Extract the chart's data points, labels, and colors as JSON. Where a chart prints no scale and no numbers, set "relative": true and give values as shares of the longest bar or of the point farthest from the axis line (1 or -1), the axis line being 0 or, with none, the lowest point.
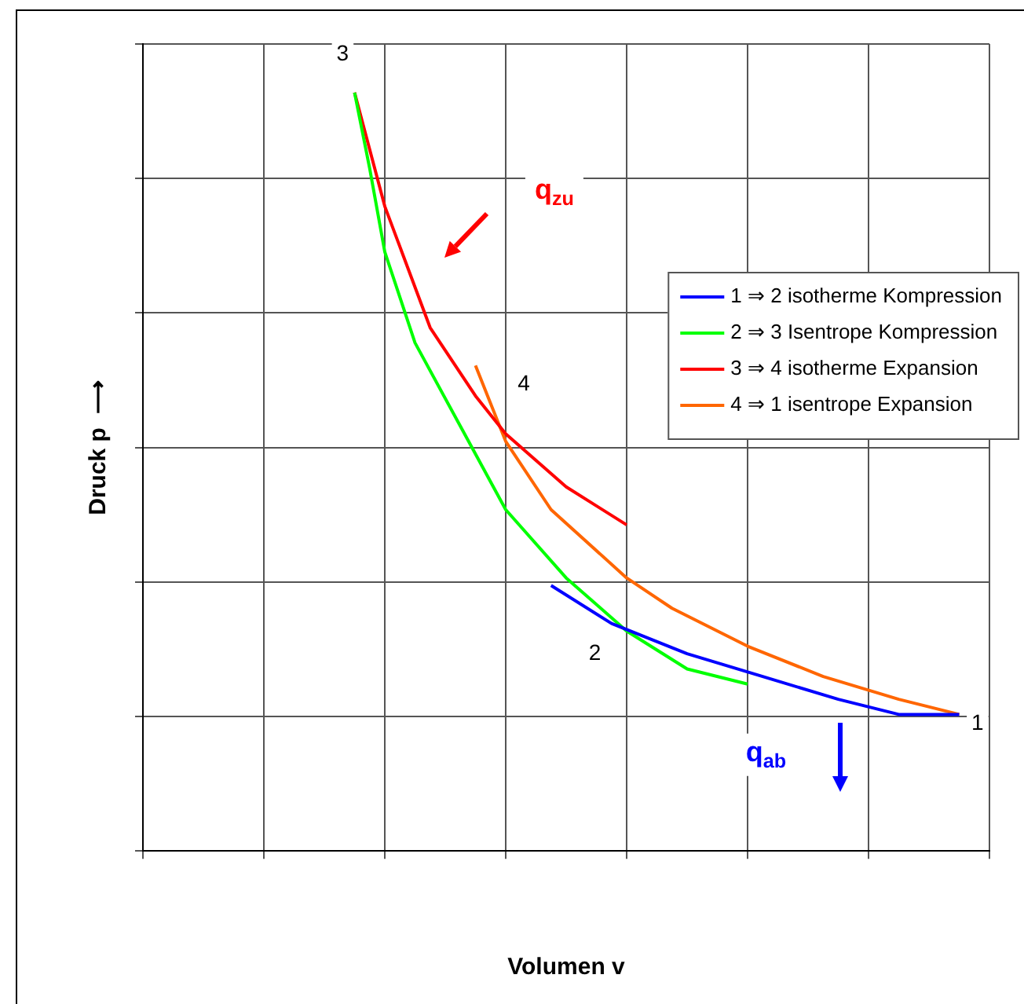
{
  "chart_data": {
    "type": "line",
    "relative": true,
    "xlabel": "Volumen v",
    "ylabel": "Druck p  ⟶",
    "categories": [
      null,
      null,
      null,
      null,
      null,
      null,
      null,
      null,
      null,
      null,
      null,
      null,
      null,
      null,
      null,
      null,
      null,
      null,
      null,
      null,
      null,
      null,
      null,
      null,
      null,
      null,
      null,
      null,
      null,
      null,
      null,
      null,
      null,
      null,
      null,
      null,
      null,
      null,
      null,
      null,
      null,
      null,
      null,
      null,
      null,
      null,
      null,
      null,
      null,
      null,
      null,
      null,
      null,
      null,
      null,
      null,
      null
    ],
    "grid": true,
    "legend": "right",
    "marker": "none",
    "line_style": "solid",
    "series": [
      {
        "name": "1 ⇒ 2 isotherme Kompression",
        "color": "#0000ff",
        "values": [
          null,
          null,
          null,
          null,
          null,
          null,
          null,
          null,
          null,
          null,
          null,
          null,
          null,
          null,
          null,
          null,
          null,
          null,
          null,
          null,
          null,
          null,
          null,
          null,
          null,
          null,
          null,
          0.35,
          null,
          null,
          null,
          0.3,
          null,
          null,
          null,
          null,
          0.26,
          null,
          null,
          null,
          null,
          0.23,
          null,
          null,
          null,
          null,
          0.2,
          null,
          null,
          null,
          0.18,
          null,
          null,
          null,
          0.18,
          null,
          null
        ]
      },
      {
        "name": "2 ⇒ 3 Isentrope Kompression",
        "color": "#00ff00",
        "values": [
          null,
          null,
          null,
          null,
          null,
          null,
          null,
          null,
          null,
          null,
          null,
          null,
          null,
          null,
          1,
          0.9,
          0.79,
          null,
          0.67,
          null,
          null,
          0.56,
          null,
          null,
          0.45,
          null,
          null,
          null,
          0.36,
          null,
          null,
          null,
          0.29,
          null,
          null,
          null,
          0.24,
          null,
          null,
          null,
          0.22,
          null,
          null,
          null,
          null,
          null,
          null,
          null,
          null,
          null,
          null,
          null,
          null,
          null,
          null,
          null,
          null
        ]
      },
      {
        "name": "3 ⇒ 4 isotherme Expansion",
        "color": "#ff0000",
        "values": [
          null,
          null,
          null,
          null,
          null,
          null,
          null,
          null,
          null,
          null,
          null,
          null,
          null,
          null,
          1,
          null,
          0.85,
          null,
          null,
          0.69,
          null,
          null,
          0.6,
          null,
          0.55,
          null,
          null,
          null,
          0.48,
          null,
          null,
          null,
          0.43,
          null,
          null,
          null,
          null,
          null,
          null,
          null,
          null,
          null,
          null,
          null,
          null,
          null,
          null,
          null,
          null,
          null,
          null,
          null,
          null,
          null,
          null,
          null,
          null
        ]
      },
      {
        "name": "4 ⇒ 1 isentrope Expansion",
        "color": "#ff6600",
        "values": [
          null,
          null,
          null,
          null,
          null,
          null,
          null,
          null,
          null,
          null,
          null,
          null,
          null,
          null,
          null,
          null,
          null,
          null,
          null,
          null,
          null,
          null,
          0.64,
          null,
          0.54,
          null,
          null,
          0.45,
          null,
          null,
          null,
          null,
          0.36,
          null,
          null,
          0.32,
          null,
          null,
          null,
          null,
          0.27,
          null,
          null,
          null,
          null,
          0.23,
          null,
          null,
          null,
          null,
          0.2,
          null,
          null,
          null,
          0.18,
          null,
          null
        ]
      }
    ],
    "annotations": [
      "3",
      "4",
      "2",
      "1",
      "q$_{zu}$",
      "q$_{ab}$"
    ]
  }
}
